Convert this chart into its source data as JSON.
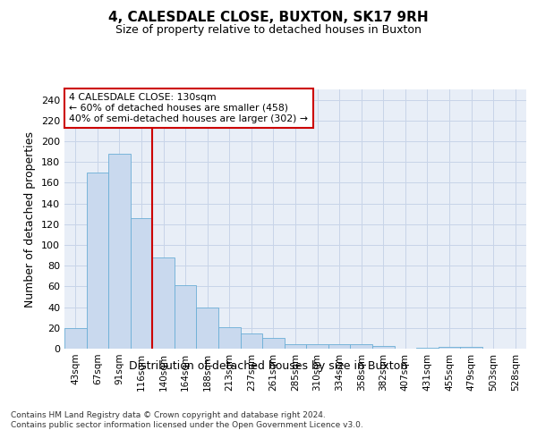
{
  "title": "4, CALESDALE CLOSE, BUXTON, SK17 9RH",
  "subtitle": "Size of property relative to detached houses in Buxton",
  "xlabel": "Distribution of detached houses by size in Buxton",
  "ylabel": "Number of detached properties",
  "categories": [
    "43sqm",
    "67sqm",
    "91sqm",
    "116sqm",
    "140sqm",
    "164sqm",
    "188sqm",
    "213sqm",
    "237sqm",
    "261sqm",
    "285sqm",
    "310sqm",
    "334sqm",
    "358sqm",
    "382sqm",
    "407sqm",
    "431sqm",
    "455sqm",
    "479sqm",
    "503sqm",
    "528sqm"
  ],
  "values": [
    20,
    170,
    188,
    126,
    88,
    61,
    40,
    21,
    15,
    10,
    4,
    4,
    4,
    4,
    3,
    0,
    1,
    2,
    2,
    0,
    0
  ],
  "bar_color": "#c9d9ee",
  "bar_edge_color": "#6baed6",
  "vline_color": "#cc0000",
  "vline_x": 3.5,
  "annotation_line1": "4 CALESDALE CLOSE: 130sqm",
  "annotation_line2": "← 60% of detached houses are smaller (458)",
  "annotation_line3": "40% of semi-detached houses are larger (302) →",
  "annotation_box_facecolor": "#ffffff",
  "annotation_box_edgecolor": "#cc0000",
  "ylim": [
    0,
    250
  ],
  "yticks": [
    0,
    20,
    40,
    60,
    80,
    100,
    120,
    140,
    160,
    180,
    200,
    220,
    240
  ],
  "footer1": "Contains HM Land Registry data © Crown copyright and database right 2024.",
  "footer2": "Contains public sector information licensed under the Open Government Licence v3.0.",
  "bg_color": "#e8eef7",
  "grid_color": "#c8d4e8"
}
